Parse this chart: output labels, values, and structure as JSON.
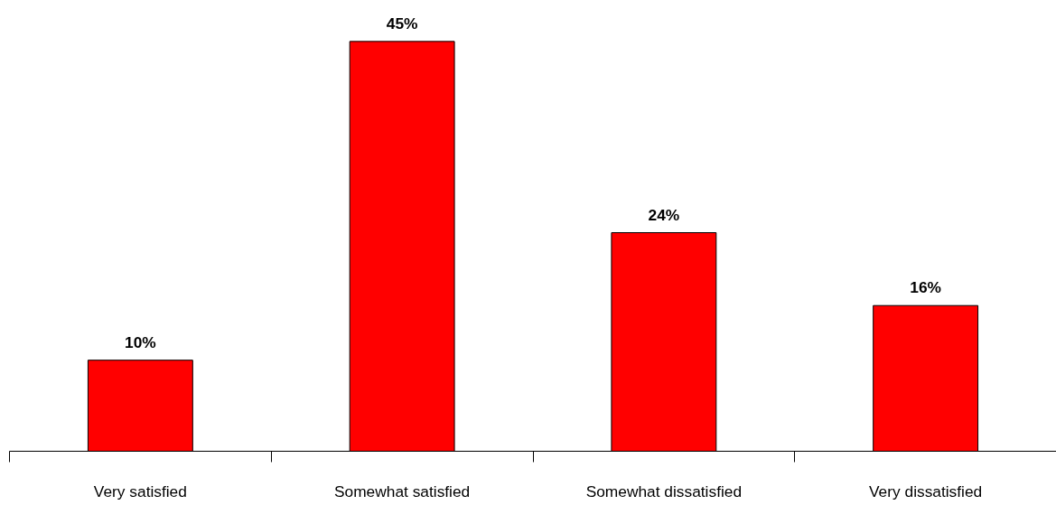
{
  "chart_data": {
    "type": "bar",
    "categories": [
      "Very satisfied",
      "Somewhat satisfied",
      "Somewhat dissatisfied",
      "Very dissatisfied"
    ],
    "values": [
      10,
      45,
      24,
      16
    ],
    "value_labels": [
      "10%",
      "45%",
      "24%",
      "16%"
    ],
    "color": "#ff0000"
  }
}
